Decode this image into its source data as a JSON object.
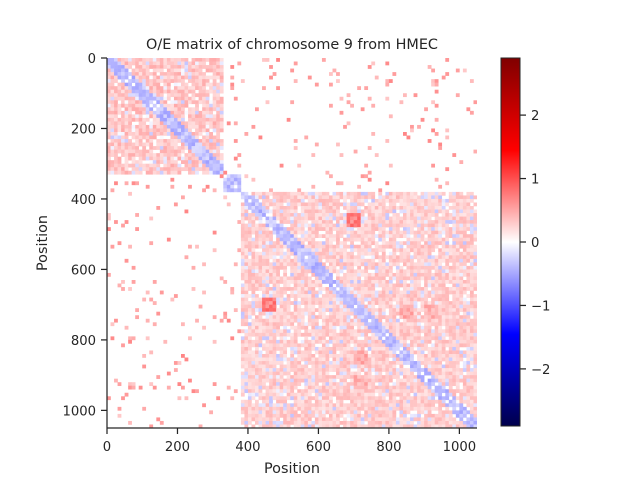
{
  "chart_data": {
    "type": "heatmap",
    "title": "O/E matrix of chromosome 9 from HMEC",
    "xlabel": "Position",
    "ylabel": "Position",
    "xlim": [
      0,
      1050
    ],
    "ylim": [
      1050,
      0
    ],
    "x_ticks": [
      0,
      200,
      400,
      600,
      800,
      1000
    ],
    "y_ticks": [
      0,
      200,
      400,
      600,
      800,
      1000
    ],
    "x_tick_labels": [
      "0",
      "200",
      "400",
      "600",
      "800",
      "1000"
    ],
    "y_tick_labels": [
      "0",
      "200",
      "400",
      "600",
      "800",
      "1000"
    ],
    "colormap": "seismic",
    "colorbar": {
      "vmin": -2.9,
      "vmax": 2.9,
      "ticks": [
        2,
        1,
        0,
        -1,
        -2
      ],
      "tick_labels": [
        "2",
        "1",
        "0",
        "−1",
        "−2"
      ]
    },
    "domains": [
      {
        "start": 0,
        "end": 330,
        "level": 0.35
      },
      {
        "start": 320,
        "end": 380,
        "level": -0.3
      },
      {
        "start": 380,
        "end": 1050,
        "level": 0.3
      }
    ],
    "hotspots": [
      {
        "x": 700,
        "y": 460,
        "level": 0.7
      },
      {
        "x": 460,
        "y": 700,
        "level": 0.7
      },
      {
        "x": 850,
        "y": 720,
        "level": 0.5
      },
      {
        "x": 720,
        "y": 850,
        "level": 0.5
      },
      {
        "x": 720,
        "y": 920,
        "level": 0.45
      },
      {
        "x": 920,
        "y": 720,
        "level": 0.45
      }
    ]
  }
}
